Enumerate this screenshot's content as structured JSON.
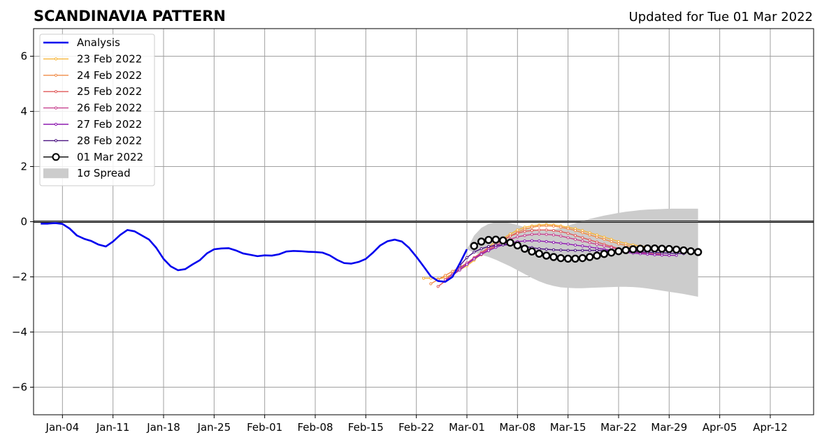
{
  "chart_data": {
    "type": "line",
    "title": "SCANDINAVIA PATTERN",
    "subtitle": "Updated for Tue 01 Mar 2022",
    "xlabel": "",
    "ylabel": "",
    "xlim": [
      "2021-12-31",
      "2022-04-18"
    ],
    "ylim": [
      -7,
      7
    ],
    "grid": true,
    "legend_position": "top-left",
    "x_ticks": [
      "2022-01-04",
      "2022-01-11",
      "2022-01-18",
      "2022-01-25",
      "2022-02-01",
      "2022-02-08",
      "2022-02-15",
      "2022-02-22",
      "2022-03-01",
      "2022-03-08",
      "2022-03-15",
      "2022-03-22",
      "2022-03-29",
      "2022-04-05",
      "2022-04-12"
    ],
    "x_tick_labels": [
      "Jan-04",
      "Jan-11",
      "Jan-18",
      "Jan-25",
      "Feb-01",
      "Feb-08",
      "Feb-15",
      "Feb-22",
      "Mar-01",
      "Mar-08",
      "Mar-15",
      "Mar-22",
      "Mar-29",
      "Apr-05",
      "Apr-12"
    ],
    "y_ticks": [
      6,
      4,
      2,
      0,
      -2,
      -4,
      -6
    ],
    "y_tick_labels": [
      "6",
      "4",
      "2",
      "0",
      "−2",
      "−4",
      "−6"
    ],
    "series": [
      {
        "name": "Analysis",
        "color": "#0000ee",
        "style": "line",
        "x": [
          "2022-01-01",
          "2022-01-02",
          "2022-01-03",
          "2022-01-04",
          "2022-01-05",
          "2022-01-06",
          "2022-01-07",
          "2022-01-08",
          "2022-01-09",
          "2022-01-10",
          "2022-01-11",
          "2022-01-12",
          "2022-01-13",
          "2022-01-14",
          "2022-01-15",
          "2022-01-16",
          "2022-01-17",
          "2022-01-18",
          "2022-01-19",
          "2022-01-20",
          "2022-01-21",
          "2022-01-22",
          "2022-01-23",
          "2022-01-24",
          "2022-01-25",
          "2022-01-26",
          "2022-01-27",
          "2022-01-28",
          "2022-01-29",
          "2022-01-30",
          "2022-01-31",
          "2022-02-01",
          "2022-02-02",
          "2022-02-03",
          "2022-02-04",
          "2022-02-05",
          "2022-02-06",
          "2022-02-07",
          "2022-02-08",
          "2022-02-09",
          "2022-02-10",
          "2022-02-11",
          "2022-02-12",
          "2022-02-13",
          "2022-02-14",
          "2022-02-15",
          "2022-02-16",
          "2022-02-17",
          "2022-02-18",
          "2022-02-19",
          "2022-02-20",
          "2022-02-21",
          "2022-02-22",
          "2022-02-23",
          "2022-02-24",
          "2022-02-25",
          "2022-02-26",
          "2022-02-27",
          "2022-02-28",
          "2022-03-01"
        ],
        "y": [
          -0.07,
          -0.07,
          -0.05,
          -0.08,
          -0.25,
          -0.5,
          -0.62,
          -0.7,
          -0.83,
          -0.9,
          -0.72,
          -0.48,
          -0.3,
          -0.35,
          -0.5,
          -0.65,
          -0.95,
          -1.35,
          -1.62,
          -1.76,
          -1.72,
          -1.55,
          -1.4,
          -1.15,
          -1.0,
          -0.97,
          -0.96,
          -1.04,
          -1.15,
          -1.2,
          -1.25,
          -1.22,
          -1.23,
          -1.18,
          -1.08,
          -1.06,
          -1.07,
          -1.09,
          -1.1,
          -1.12,
          -1.22,
          -1.38,
          -1.5,
          -1.52,
          -1.46,
          -1.35,
          -1.12,
          -0.86,
          -0.71,
          -0.65,
          -0.72,
          -0.95,
          -1.27,
          -1.62,
          -1.98,
          -2.15,
          -2.18,
          -2.0,
          -1.52,
          -1.0
        ]
      },
      {
        "name": "23 Feb 2022",
        "color": "#f7b538",
        "style": "marker-line",
        "x": [
          "2022-02-23",
          "2022-02-24",
          "2022-02-25",
          "2022-02-26",
          "2022-02-27",
          "2022-02-28",
          "2022-03-01",
          "2022-03-02",
          "2022-03-03",
          "2022-03-04",
          "2022-03-05",
          "2022-03-06",
          "2022-03-07",
          "2022-03-08",
          "2022-03-09",
          "2022-03-10",
          "2022-03-11",
          "2022-03-12",
          "2022-03-13",
          "2022-03-14",
          "2022-03-15",
          "2022-03-16",
          "2022-03-17",
          "2022-03-18",
          "2022-03-19",
          "2022-03-20",
          "2022-03-21",
          "2022-03-22",
          "2022-03-23",
          "2022-03-24",
          "2022-03-25",
          "2022-03-26"
        ],
        "y": [
          -2.05,
          -2.05,
          -2.08,
          -2.02,
          -1.9,
          -1.75,
          -1.6,
          -1.4,
          -1.15,
          -0.92,
          -0.7,
          -0.6,
          -0.45,
          -0.3,
          -0.2,
          -0.15,
          -0.12,
          -0.1,
          -0.12,
          -0.15,
          -0.2,
          -0.25,
          -0.32,
          -0.4,
          -0.48,
          -0.56,
          -0.64,
          -0.72,
          -0.79,
          -0.84,
          -0.88,
          -0.91
        ]
      },
      {
        "name": "24 Feb 2022",
        "color": "#f08b47",
        "style": "marker-line",
        "x": [
          "2022-02-24",
          "2022-02-25",
          "2022-02-26",
          "2022-02-27",
          "2022-02-28",
          "2022-03-01",
          "2022-03-02",
          "2022-03-03",
          "2022-03-04",
          "2022-03-05",
          "2022-03-06",
          "2022-03-07",
          "2022-03-08",
          "2022-03-09",
          "2022-03-10",
          "2022-03-11",
          "2022-03-12",
          "2022-03-13",
          "2022-03-14",
          "2022-03-15",
          "2022-03-16",
          "2022-03-17",
          "2022-03-18",
          "2022-03-19",
          "2022-03-20",
          "2022-03-21",
          "2022-03-22",
          "2022-03-23",
          "2022-03-24",
          "2022-03-25",
          "2022-03-26",
          "2022-03-27"
        ],
        "y": [
          -2.25,
          -2.1,
          -1.95,
          -1.8,
          -1.65,
          -1.5,
          -1.35,
          -1.2,
          -1.05,
          -0.88,
          -0.7,
          -0.52,
          -0.38,
          -0.27,
          -0.2,
          -0.16,
          -0.15,
          -0.16,
          -0.2,
          -0.25,
          -0.32,
          -0.4,
          -0.48,
          -0.56,
          -0.64,
          -0.72,
          -0.8,
          -0.86,
          -0.92,
          -0.96,
          -1.0,
          -1.02
        ]
      },
      {
        "name": "25 Feb 2022",
        "color": "#e05a5a",
        "style": "marker-line",
        "x": [
          "2022-02-25",
          "2022-02-26",
          "2022-02-27",
          "2022-02-28",
          "2022-03-01",
          "2022-03-02",
          "2022-03-03",
          "2022-03-04",
          "2022-03-05",
          "2022-03-06",
          "2022-03-07",
          "2022-03-08",
          "2022-03-09",
          "2022-03-10",
          "2022-03-11",
          "2022-03-12",
          "2022-03-13",
          "2022-03-14",
          "2022-03-15",
          "2022-03-16",
          "2022-03-17",
          "2022-03-18",
          "2022-03-19",
          "2022-03-20",
          "2022-03-21",
          "2022-03-22",
          "2022-03-23",
          "2022-03-24",
          "2022-03-25",
          "2022-03-26",
          "2022-03-27",
          "2022-03-28"
        ],
        "y": [
          -2.35,
          -2.15,
          -1.9,
          -1.7,
          -1.5,
          -1.3,
          -1.12,
          -0.95,
          -0.8,
          -0.65,
          -0.52,
          -0.42,
          -0.35,
          -0.32,
          -0.3,
          -0.3,
          -0.32,
          -0.36,
          -0.42,
          -0.5,
          -0.58,
          -0.66,
          -0.74,
          -0.82,
          -0.9,
          -0.97,
          -1.03,
          -1.08,
          -1.12,
          -1.15,
          -1.17,
          -1.18
        ]
      },
      {
        "name": "26 Feb 2022",
        "color": "#c7428f",
        "style": "marker-line",
        "x": [
          "2022-02-26",
          "2022-02-27",
          "2022-02-28",
          "2022-03-01",
          "2022-03-02",
          "2022-03-03",
          "2022-03-04",
          "2022-03-05",
          "2022-03-06",
          "2022-03-07",
          "2022-03-08",
          "2022-03-09",
          "2022-03-10",
          "2022-03-11",
          "2022-03-12",
          "2022-03-13",
          "2022-03-14",
          "2022-03-15",
          "2022-03-16",
          "2022-03-17",
          "2022-03-18",
          "2022-03-19",
          "2022-03-20",
          "2022-03-21",
          "2022-03-22",
          "2022-03-23",
          "2022-03-24",
          "2022-03-25",
          "2022-03-26",
          "2022-03-27",
          "2022-03-28",
          "2022-03-29"
        ],
        "y": [
          -2.1,
          -1.9,
          -1.7,
          -1.5,
          -1.32,
          -1.15,
          -1.0,
          -0.86,
          -0.74,
          -0.64,
          -0.55,
          -0.5,
          -0.46,
          -0.45,
          -0.46,
          -0.48,
          -0.52,
          -0.58,
          -0.64,
          -0.7,
          -0.76,
          -0.82,
          -0.88,
          -0.94,
          -1.0,
          -1.05,
          -1.09,
          -1.13,
          -1.16,
          -1.19,
          -1.21,
          -1.22
        ]
      },
      {
        "name": "27 Feb 2022",
        "color": "#8e1cb0",
        "style": "marker-line",
        "x": [
          "2022-02-27",
          "2022-02-28",
          "2022-03-01",
          "2022-03-02",
          "2022-03-03",
          "2022-03-04",
          "2022-03-05",
          "2022-03-06",
          "2022-03-07",
          "2022-03-08",
          "2022-03-09",
          "2022-03-10",
          "2022-03-11",
          "2022-03-12",
          "2022-03-13",
          "2022-03-14",
          "2022-03-15",
          "2022-03-16",
          "2022-03-17",
          "2022-03-18",
          "2022-03-19",
          "2022-03-20",
          "2022-03-21",
          "2022-03-22",
          "2022-03-23",
          "2022-03-24",
          "2022-03-25",
          "2022-03-26",
          "2022-03-27",
          "2022-03-28",
          "2022-03-29",
          "2022-03-30"
        ],
        "y": [
          -1.95,
          -1.75,
          -1.55,
          -1.35,
          -1.18,
          -1.05,
          -0.93,
          -0.84,
          -0.77,
          -0.72,
          -0.7,
          -0.69,
          -0.7,
          -0.72,
          -0.75,
          -0.78,
          -0.81,
          -0.85,
          -0.88,
          -0.92,
          -0.96,
          -1.0,
          -1.04,
          -1.08,
          -1.11,
          -1.14,
          -1.16,
          -1.18,
          -1.2,
          -1.21,
          -1.22,
          -1.22
        ]
      },
      {
        "name": "28 Feb 2022",
        "color": "#4b1280",
        "style": "marker-line",
        "x": [
          "2022-02-28",
          "2022-03-01",
          "2022-03-02",
          "2022-03-03",
          "2022-03-04",
          "2022-03-05",
          "2022-03-06",
          "2022-03-07",
          "2022-03-08",
          "2022-03-09",
          "2022-03-10",
          "2022-03-11",
          "2022-03-12",
          "2022-03-13",
          "2022-03-14",
          "2022-03-15",
          "2022-03-16",
          "2022-03-17",
          "2022-03-18",
          "2022-03-19",
          "2022-03-20",
          "2022-03-21",
          "2022-03-22",
          "2022-03-23",
          "2022-03-24",
          "2022-03-25",
          "2022-03-26",
          "2022-03-27",
          "2022-03-28",
          "2022-03-29",
          "2022-03-30",
          "2022-03-31"
        ],
        "y": [
          -1.6,
          -1.3,
          -1.1,
          -0.98,
          -0.9,
          -0.86,
          -0.84,
          -0.84,
          -0.86,
          -0.9,
          -0.94,
          -0.98,
          -1.0,
          -1.02,
          -1.03,
          -1.04,
          -1.04,
          -1.04,
          -1.04,
          -1.04,
          -1.05,
          -1.06,
          -1.07,
          -1.08,
          -1.09,
          -1.1,
          -1.11,
          -1.12,
          -1.13,
          -1.14,
          -1.15,
          -1.16
        ]
      },
      {
        "name": "01 Mar 2022",
        "color": "#000000",
        "style": "circle-line",
        "x": [
          "2022-03-02",
          "2022-03-03",
          "2022-03-04",
          "2022-03-05",
          "2022-03-06",
          "2022-03-07",
          "2022-03-08",
          "2022-03-09",
          "2022-03-10",
          "2022-03-11",
          "2022-03-12",
          "2022-03-13",
          "2022-03-14",
          "2022-03-15",
          "2022-03-16",
          "2022-03-17",
          "2022-03-18",
          "2022-03-19",
          "2022-03-20",
          "2022-03-21",
          "2022-03-22",
          "2022-03-23",
          "2022-03-24",
          "2022-03-25",
          "2022-03-26",
          "2022-03-27",
          "2022-03-28",
          "2022-03-29",
          "2022-03-30",
          "2022-03-31",
          "2022-04-01",
          "2022-04-02"
        ],
        "y": [
          -0.88,
          -0.72,
          -0.66,
          -0.65,
          -0.68,
          -0.76,
          -0.86,
          -0.98,
          -1.08,
          -1.16,
          -1.23,
          -1.28,
          -1.32,
          -1.34,
          -1.34,
          -1.32,
          -1.28,
          -1.23,
          -1.17,
          -1.12,
          -1.07,
          -1.03,
          -1.0,
          -0.98,
          -0.97,
          -0.97,
          -0.98,
          -0.99,
          -1.01,
          -1.04,
          -1.07,
          -1.1
        ]
      }
    ],
    "spread": {
      "name": "1σ Spread",
      "color": "#cccccc",
      "x": [
        "2022-03-01",
        "2022-03-02",
        "2022-03-03",
        "2022-03-04",
        "2022-03-05",
        "2022-03-06",
        "2022-03-07",
        "2022-03-08",
        "2022-03-09",
        "2022-03-10",
        "2022-03-11",
        "2022-03-12",
        "2022-03-13",
        "2022-03-14",
        "2022-03-15",
        "2022-03-16",
        "2022-03-17",
        "2022-03-18",
        "2022-03-19",
        "2022-03-20",
        "2022-03-21",
        "2022-03-22",
        "2022-03-23",
        "2022-03-24",
        "2022-03-25",
        "2022-03-26",
        "2022-03-27",
        "2022-03-28",
        "2022-03-29",
        "2022-03-30",
        "2022-03-31",
        "2022-04-01",
        "2022-04-02"
      ],
      "upper": [
        -1.0,
        -0.5,
        -0.22,
        -0.08,
        -0.02,
        -0.02,
        -0.05,
        -0.12,
        -0.2,
        -0.26,
        -0.3,
        -0.3,
        -0.28,
        -0.22,
        -0.14,
        -0.06,
        0.02,
        0.1,
        0.16,
        0.22,
        0.27,
        0.32,
        0.36,
        0.39,
        0.42,
        0.44,
        0.45,
        0.46,
        0.47,
        0.47,
        0.47,
        0.47,
        0.47
      ],
      "lower": [
        -1.0,
        -1.12,
        -1.2,
        -1.28,
        -1.38,
        -1.5,
        -1.62,
        -1.76,
        -1.9,
        -2.04,
        -2.16,
        -2.26,
        -2.33,
        -2.38,
        -2.4,
        -2.41,
        -2.41,
        -2.4,
        -2.39,
        -2.38,
        -2.37,
        -2.36,
        -2.36,
        -2.37,
        -2.39,
        -2.42,
        -2.46,
        -2.5,
        -2.54,
        -2.58,
        -2.62,
        -2.67,
        -2.72
      ]
    }
  }
}
